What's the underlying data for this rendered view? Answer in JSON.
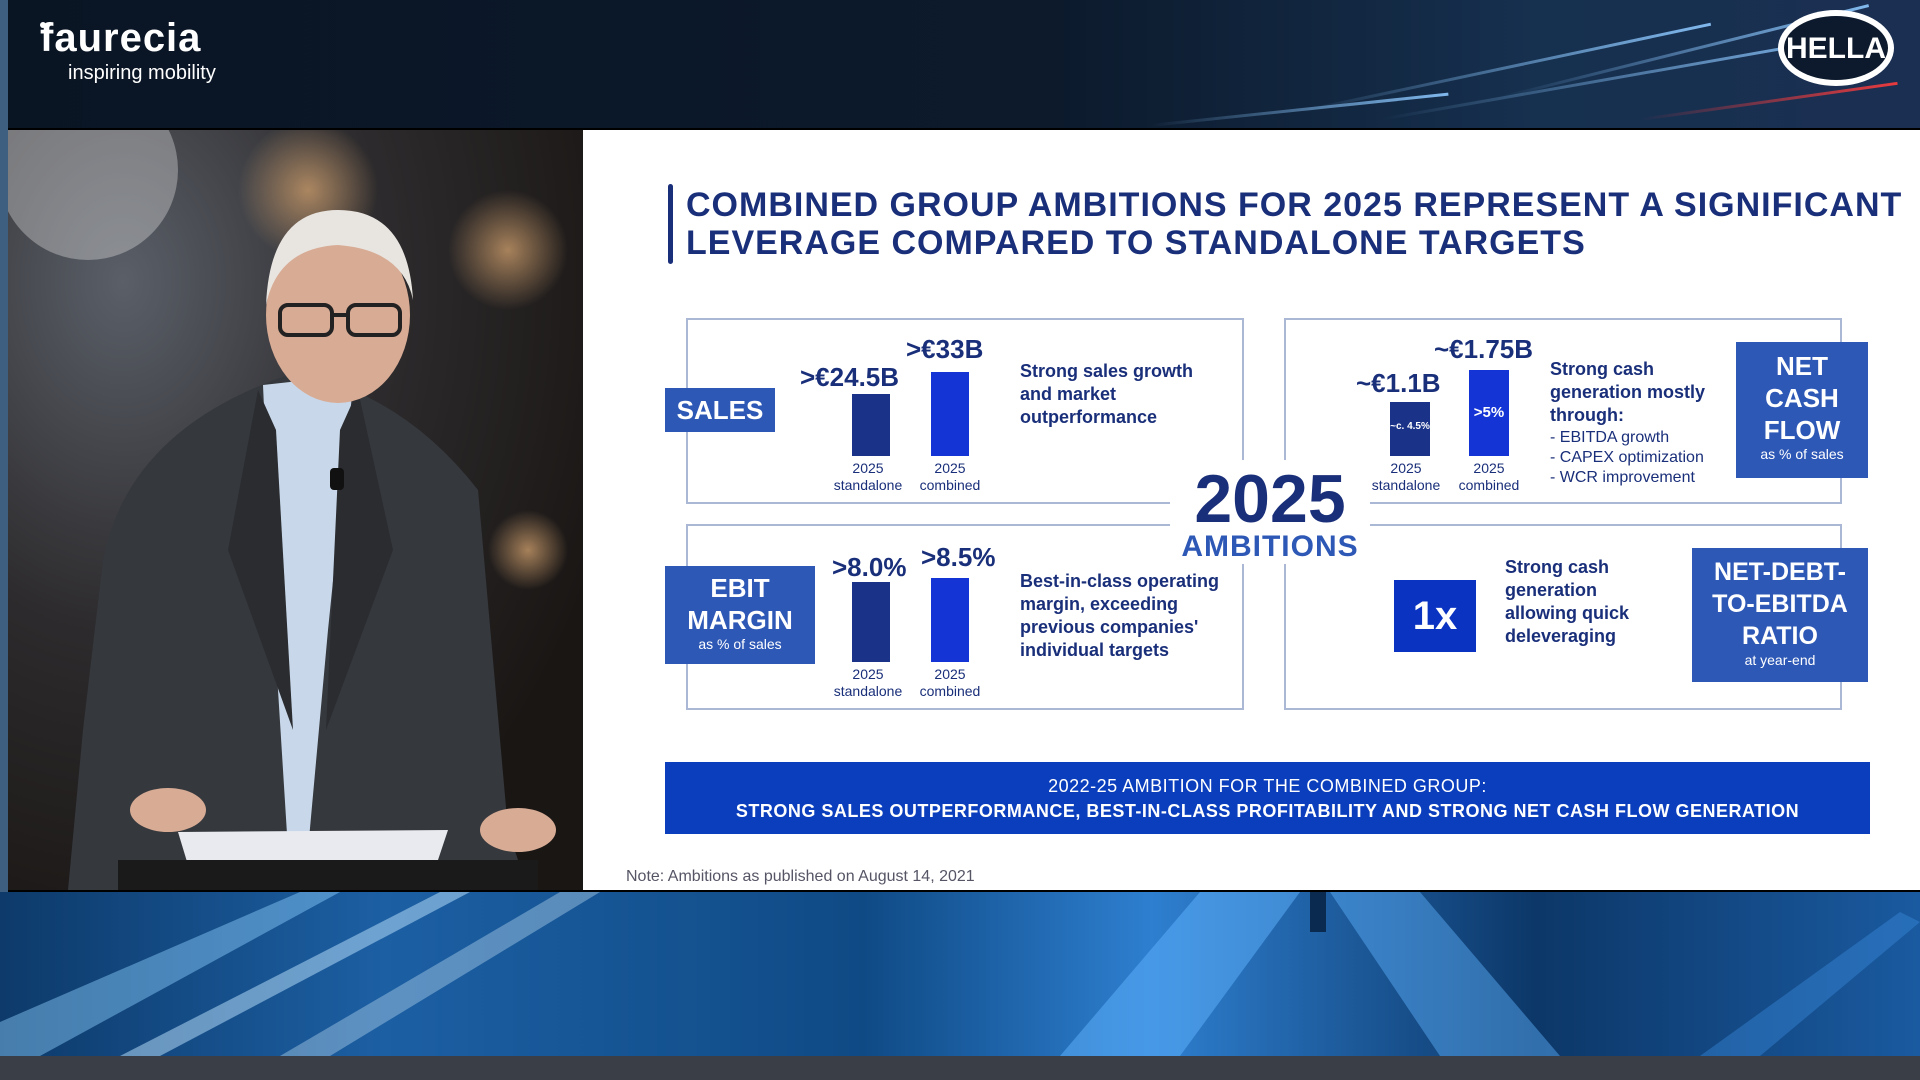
{
  "header": {
    "faurecia_name": "faurecia",
    "faurecia_tagline": "inspiring mobility",
    "hella_logo": "HELLA"
  },
  "slide": {
    "title_line1": "COMBINED GROUP AMBITIONS FOR 2025 REPRESENT A SIGNIFICANT",
    "title_line2": "LEVERAGE COMPARED TO STANDALONE TARGETS",
    "center_year": "2025",
    "center_label": "AMBITIONS",
    "sales": {
      "label": "SALES",
      "standalone_value": ">€24.5B",
      "combined_value": ">€33B",
      "standalone_label_1": "2025",
      "standalone_label_2": "standalone",
      "combined_label_1": "2025",
      "combined_label_2": "combined",
      "description": "Strong sales growth and market outperformance"
    },
    "ebit": {
      "label_1": "EBIT",
      "label_2": "MARGIN",
      "sublabel": "as % of sales",
      "standalone_value": ">8.0%",
      "combined_value": ">8.5%",
      "standalone_label_1": "2025",
      "standalone_label_2": "standalone",
      "combined_label_1": "2025",
      "combined_label_2": "combined",
      "description": "Best-in-class operating margin, exceeding previous companies' individual targets"
    },
    "net_cash_flow": {
      "label_1": "NET",
      "label_2": "CASH",
      "label_3": "FLOW",
      "sublabel": "as % of sales",
      "standalone_value": "~€1.1B",
      "combined_value": "~€1.75B",
      "standalone_bar_text": "~c. 4.5%",
      "combined_bar_text": ">5%",
      "standalone_label_1": "2025",
      "standalone_label_2": "standalone",
      "combined_label_1": "2025",
      "combined_label_2": "combined",
      "description": "Strong cash generation mostly through:",
      "bullets": [
        "- EBITDA growth",
        "- CAPEX optimization",
        "- WCR improvement"
      ]
    },
    "net_debt": {
      "label_1": "NET-DEBT-",
      "label_2": "TO-EBITDA",
      "label_3": "RATIO",
      "sublabel": "at year-end",
      "value": "1x",
      "description": "Strong cash generation allowing quick deleveraging"
    },
    "banner_line1": "2022-25 AMBITION FOR THE COMBINED GROUP:",
    "banner_line2": "STRONG SALES OUTPERFORMANCE, BEST-IN-CLASS PROFITABILITY AND STRONG NET CASH FLOW GENERATION",
    "note": "Note: Ambitions as published on August 14, 2021"
  },
  "colors": {
    "navy": "#1a2f7a",
    "label_blue": "#2e58b6",
    "bar_dark": "#1a3389",
    "bar_bright": "#1534d6",
    "banner": "#0a3ebd"
  }
}
